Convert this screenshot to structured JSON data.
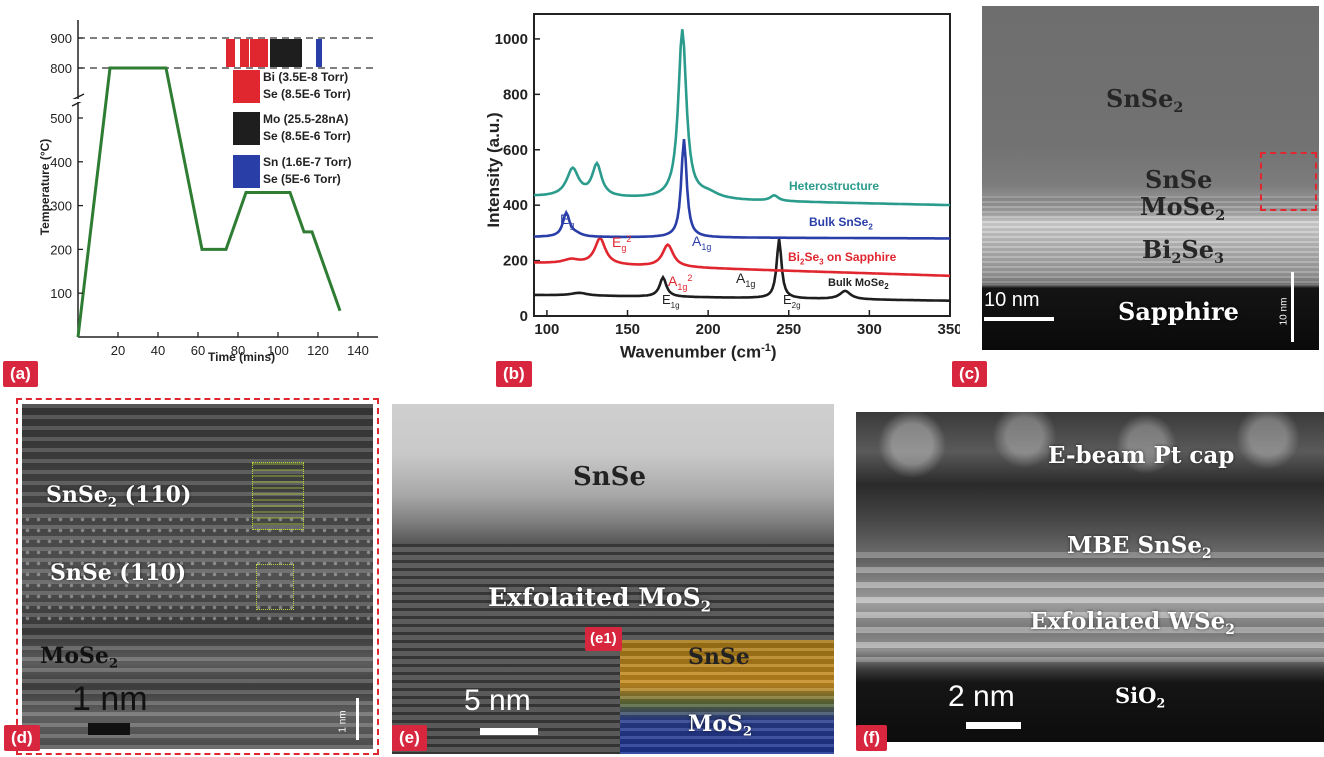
{
  "panels": {
    "a": {
      "tag": "(a)",
      "ylabel": "Temperature (°C)",
      "xlabel": "Time (mins)",
      "xticks": [
        "20",
        "40",
        "60",
        "80",
        "100",
        "120",
        "140"
      ],
      "yticks_low": [
        "100",
        "200",
        "300",
        "400",
        "500"
      ],
      "yticks_high": [
        "800",
        "900"
      ],
      "legend": [
        {
          "line1": "Bi (3.5E-8 Torr)",
          "line2": "Se (8.5E-6 Torr)",
          "color": "#e0262e"
        },
        {
          "line1": "Mo (25.5-28nA)",
          "line2": "Se (8.5E-6 Torr)",
          "color": "#1e1e1e"
        },
        {
          "line1": "Sn (1.6E-7 Torr)",
          "line2": "Se (5E-6 Torr)",
          "color": "#2a3ea8"
        }
      ],
      "profile_color": "#2e7d32"
    },
    "b": {
      "tag": "(b)",
      "ylabel": "Intensity (a.u.)",
      "xlabel": "Wavenumber (cm",
      "xlabel_sup": "-1",
      "xlabel_end": ")",
      "xticks": [
        "100",
        "150",
        "200",
        "250",
        "300",
        "350"
      ],
      "yticks": [
        "0",
        "200",
        "400",
        "600",
        "800",
        "1000"
      ],
      "series_labels": {
        "hetero": "Heterostructure",
        "snse2": "Bulk SnSe",
        "bise": "Bi",
        "mose": "Bulk MoSe"
      }
    },
    "c": {
      "tag": "(c)",
      "labels": {
        "snse2": "SnSe",
        "snse": "SnSe",
        "mose2": "MoSe",
        "bise": "Bi",
        "sapphire": "Sapphire"
      },
      "scale": "10 nm",
      "scale_v": "10 nm"
    },
    "d": {
      "tag": "(d)",
      "labels": {
        "snse2": "SnSe",
        "snse2_idx": "(110)",
        "snse": "SnSe (110)",
        "mose2": "MoSe"
      },
      "scale": "1 nm",
      "scale_v": "1 nm"
    },
    "e": {
      "tag": "(e)",
      "inset_tag": "(e1)",
      "labels": {
        "snse": "SnSe",
        "mos2": "Exfolaited MoS",
        "inset_snse": "SnSe",
        "inset_mos2": "MoS"
      },
      "scale": "5 nm"
    },
    "f": {
      "tag": "(f)",
      "labels": {
        "pt": "E-beam Pt cap",
        "snse2": "MBE SnSe",
        "wse2": "Exfoliated WSe",
        "sio2": "SiO"
      },
      "scale": "2 nm"
    }
  }
}
